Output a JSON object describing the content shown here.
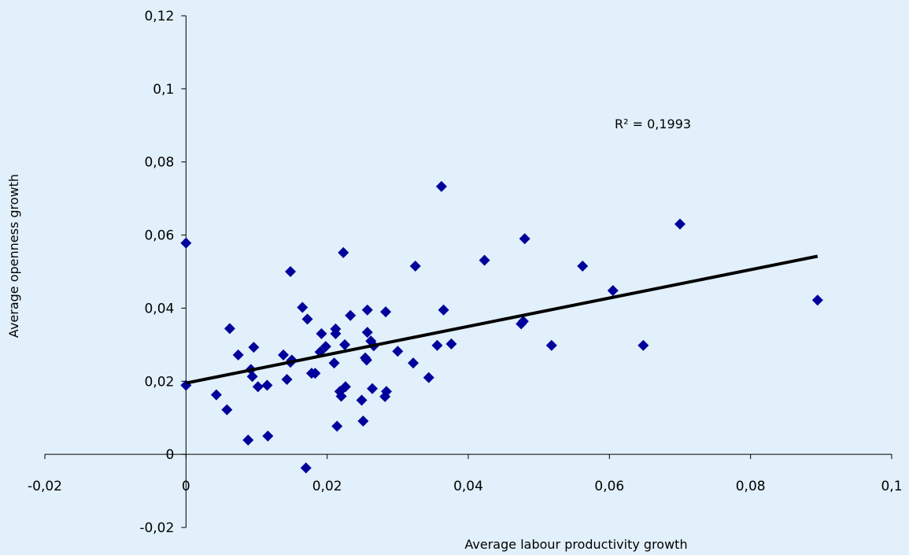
{
  "chart_data": {
    "type": "scatter",
    "xlabel": "Average labour productivity growth",
    "ylabel": "Average openness growth",
    "xlim": [
      -0.02,
      0.1
    ],
    "ylim": [
      -0.02,
      0.12
    ],
    "x_ticks": [
      -0.02,
      0,
      0.02,
      0.04,
      0.06,
      0.08,
      0.1
    ],
    "x_tick_labels": [
      "-0,02",
      "0",
      "0,02",
      "0,04",
      "0,06",
      "0,08",
      "0,1"
    ],
    "y_ticks": [
      -0.02,
      0,
      0.02,
      0.04,
      0.06,
      0.08,
      0.1,
      0.12
    ],
    "y_tick_labels": [
      "-0,02",
      "0",
      "0,02",
      "0,04",
      "0,06",
      "0,08",
      "0,1",
      "0,12"
    ],
    "annotation": "R² = 0,1993",
    "marker_color": "#00009c",
    "trendline_color": "#000000",
    "trendline": {
      "x": [
        0.0,
        0.0895
      ],
      "y": [
        0.0195,
        0.0542
      ]
    },
    "points": [
      [
        0.0,
        0.0578
      ],
      [
        0.0,
        0.0189
      ],
      [
        0.0043,
        0.0163
      ],
      [
        0.0058,
        0.0122
      ],
      [
        0.0062,
        0.0344
      ],
      [
        0.0074,
        0.0272
      ],
      [
        0.0088,
        0.0039
      ],
      [
        0.0092,
        0.0232
      ],
      [
        0.0094,
        0.0213
      ],
      [
        0.0096,
        0.0293
      ],
      [
        0.0102,
        0.0185
      ],
      [
        0.0115,
        0.0189
      ],
      [
        0.0116,
        0.005
      ],
      [
        0.0138,
        0.0272
      ],
      [
        0.0143,
        0.0205
      ],
      [
        0.0148,
        0.0252
      ],
      [
        0.0148,
        0.05
      ],
      [
        0.015,
        0.0258
      ],
      [
        0.0165,
        0.0402
      ],
      [
        0.017,
        -0.0037
      ],
      [
        0.0172,
        0.037
      ],
      [
        0.0178,
        0.0222
      ],
      [
        0.0183,
        0.0222
      ],
      [
        0.019,
        0.028
      ],
      [
        0.0192,
        0.033
      ],
      [
        0.0198,
        0.0295
      ],
      [
        0.021,
        0.025
      ],
      [
        0.0212,
        0.0343
      ],
      [
        0.0212,
        0.033
      ],
      [
        0.0214,
        0.0077
      ],
      [
        0.0218,
        0.0172
      ],
      [
        0.022,
        0.0159
      ],
      [
        0.0223,
        0.0552
      ],
      [
        0.0225,
        0.03
      ],
      [
        0.0226,
        0.0185
      ],
      [
        0.0233,
        0.038
      ],
      [
        0.0249,
        0.0148
      ],
      [
        0.0251,
        0.0091
      ],
      [
        0.0254,
        0.0264
      ],
      [
        0.0256,
        0.0258
      ],
      [
        0.0257,
        0.0395
      ],
      [
        0.0257,
        0.0334
      ],
      [
        0.0262,
        0.031
      ],
      [
        0.0264,
        0.018
      ],
      [
        0.0266,
        0.0297
      ],
      [
        0.0282,
        0.0158
      ],
      [
        0.0283,
        0.039
      ],
      [
        0.0284,
        0.0172
      ],
      [
        0.03,
        0.0282
      ],
      [
        0.0322,
        0.025
      ],
      [
        0.0325,
        0.0515
      ],
      [
        0.0344,
        0.021
      ],
      [
        0.0356,
        0.0298
      ],
      [
        0.0362,
        0.0733
      ],
      [
        0.0365,
        0.0395
      ],
      [
        0.0376,
        0.0302
      ],
      [
        0.0423,
        0.0531
      ],
      [
        0.0475,
        0.0357
      ],
      [
        0.0478,
        0.0364
      ],
      [
        0.048,
        0.059
      ],
      [
        0.0518,
        0.0298
      ],
      [
        0.0562,
        0.0515
      ],
      [
        0.0605,
        0.0448
      ],
      [
        0.0648,
        0.0298
      ],
      [
        0.07,
        0.063
      ],
      [
        0.0895,
        0.0422
      ]
    ]
  }
}
